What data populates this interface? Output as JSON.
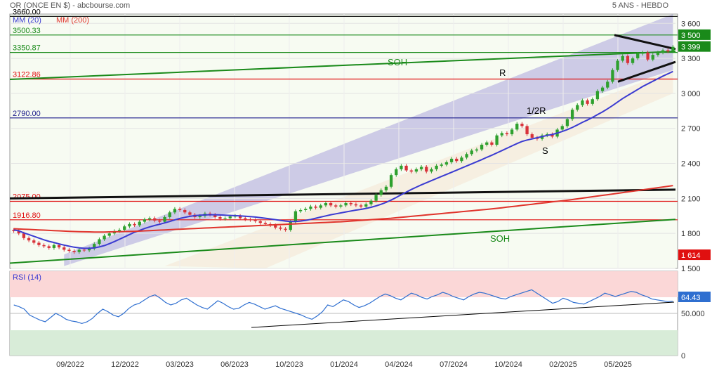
{
  "header": {
    "title": "OR (ONCE EN $) - abcbourse.com",
    "right": "5 ANS - HEBDO"
  },
  "legend": {
    "ma_short": "MM (20)",
    "ma_long": "MM (200)",
    "ma_short_color": "#3b3bd1",
    "ma_long_color": "#e0342c"
  },
  "levels": [
    {
      "label": "3660.00",
      "value": 3660,
      "color": "#000000"
    },
    {
      "label": "3500.33",
      "value": 3500.33,
      "color": "#1a8a1a"
    },
    {
      "label": "3350.87",
      "value": 3350.87,
      "color": "#1a8a1a"
    },
    {
      "label": "3122.86",
      "value": 3122.86,
      "color": "#e01010"
    },
    {
      "label": "2790.00",
      "value": 2790,
      "color": "#1a1a8a"
    },
    {
      "label": "2075.00",
      "value": 2075,
      "color": "#e01010"
    },
    {
      "label": "1916.80",
      "value": 1916.8,
      "color": "#e01010"
    }
  ],
  "annotations": {
    "soh_top": "SOH",
    "soh_bottom": "SOH",
    "r": "R",
    "half_r": "1/2R",
    "s": "S"
  },
  "price_badges": [
    {
      "label": "3 500",
      "value": 3500,
      "color": "#1a8a1a"
    },
    {
      "label": "3 399",
      "value": 3399,
      "color": "#1a8a1a"
    },
    {
      "label": "1 614",
      "value": 1614,
      "color": "#e01010"
    }
  ],
  "rsi": {
    "title": "RSI (14)",
    "value_label": "64.43",
    "value": 64.43,
    "line_color": "#2f6fd0",
    "ticks": [
      {
        "label": "50.000",
        "value": 50
      },
      {
        "label": "0",
        "value": 0
      }
    ],
    "overbought": 70,
    "oversold": 30,
    "series": [
      60,
      58,
      55,
      48,
      45,
      42,
      40,
      45,
      50,
      47,
      43,
      41,
      40,
      38,
      40,
      44,
      50,
      55,
      52,
      48,
      46,
      50,
      56,
      60,
      62,
      66,
      70,
      72,
      68,
      63,
      60,
      62,
      66,
      68,
      64,
      60,
      57,
      55,
      60,
      65,
      62,
      58,
      55,
      56,
      60,
      63,
      61,
      58,
      55,
      57,
      59,
      56,
      54,
      52,
      50,
      48,
      45,
      43,
      47,
      52,
      60,
      58,
      62,
      66,
      64,
      60,
      57,
      59,
      62,
      66,
      70,
      73,
      71,
      68,
      66,
      70,
      74,
      72,
      69,
      67,
      70,
      72,
      75,
      73,
      70,
      68,
      66,
      70,
      73,
      75,
      74,
      72,
      70,
      68,
      67,
      70,
      72,
      74,
      76,
      78,
      74,
      70,
      66,
      62,
      64,
      68,
      66,
      63,
      62,
      61,
      64,
      67,
      70,
      74,
      72,
      70,
      72,
      74,
      76,
      75,
      72,
      70,
      67,
      66,
      65,
      64,
      64.43
    ]
  },
  "chart_data": {
    "type": "candlestick",
    "title": "OR (ONCE EN $)",
    "period": "5 ANS - HEBDO",
    "ylim": [
      1500,
      3680
    ],
    "y_ticks": [
      1500,
      1800,
      2100,
      2400,
      2700,
      3000,
      3300,
      3600
    ],
    "y_tick_labels": [
      "1 500",
      "1 800",
      "2 100",
      "2 400",
      "2 700",
      "3 000",
      "3 300",
      "3 600"
    ],
    "x_tick_labels": [
      "09/2022",
      "12/2022",
      "03/2023",
      "06/2023",
      "10/2023",
      "01/2024",
      "04/2024",
      "07/2024",
      "10/2024",
      "02/2025",
      "05/2025"
    ],
    "close": [
      1820,
      1800,
      1760,
      1740,
      1720,
      1700,
      1690,
      1675,
      1700,
      1680,
      1660,
      1650,
      1640,
      1660,
      1655,
      1670,
      1710,
      1750,
      1780,
      1800,
      1820,
      1830,
      1860,
      1880,
      1870,
      1900,
      1920,
      1930,
      1910,
      1900,
      1940,
      1980,
      2010,
      2000,
      1980,
      1960,
      1940,
      1950,
      1970,
      1960,
      1940,
      1925,
      1930,
      1945,
      1950,
      1930,
      1920,
      1915,
      1905,
      1890,
      1880,
      1870,
      1850,
      1840,
      1830,
      1900,
      1990,
      2000,
      2010,
      2030,
      2020,
      2040,
      2060,
      2040,
      2030,
      2040,
      2060,
      2050,
      2040,
      2030,
      2050,
      2080,
      2130,
      2170,
      2200,
      2300,
      2350,
      2380,
      2340,
      2330,
      2350,
      2370,
      2330,
      2350,
      2380,
      2390,
      2410,
      2440,
      2420,
      2450,
      2480,
      2510,
      2520,
      2560,
      2580,
      2560,
      2640,
      2660,
      2650,
      2690,
      2740,
      2720,
      2650,
      2620,
      2610,
      2640,
      2650,
      2630,
      2690,
      2720,
      2780,
      2860,
      2900,
      2940,
      2910,
      2950,
      3020,
      3050,
      3100,
      3200,
      3280,
      3320,
      3260,
      3300,
      3340,
      3350,
      3290,
      3330,
      3350,
      3370,
      3360,
      3399
    ],
    "ma20_label": "MM (20)",
    "ma200_label": "MM (200)",
    "ma20": [
      1830,
      1822,
      1805,
      1790,
      1775,
      1760,
      1745,
      1732,
      1722,
      1710,
      1700,
      1690,
      1682,
      1676,
      1672,
      1672,
      1676,
      1684,
      1696,
      1712,
      1730,
      1750,
      1770,
      1790,
      1810,
      1826,
      1842,
      1856,
      1868,
      1878,
      1890,
      1902,
      1916,
      1928,
      1938,
      1946,
      1952,
      1956,
      1958,
      1960,
      1960,
      1958,
      1956,
      1954,
      1952,
      1950,
      1947,
      1944,
      1940,
      1935,
      1930,
      1924,
      1918,
      1912,
      1906,
      1902,
      1902,
      1906,
      1912,
      1920,
      1930,
      1940,
      1950,
      1960,
      1968,
      1976,
      1984,
      1992,
      2000,
      2006,
      2014,
      2024,
      2036,
      2050,
      2066,
      2086,
      2108,
      2132,
      2154,
      2176,
      2196,
      2216,
      2234,
      2252,
      2270,
      2288,
      2306,
      2324,
      2342,
      2360,
      2378,
      2396,
      2414,
      2432,
      2452,
      2470,
      2490,
      2510,
      2530,
      2550,
      2570,
      2588,
      2600,
      2610,
      2620,
      2630,
      2640,
      2648,
      2660,
      2674,
      2690,
      2708,
      2730,
      2752,
      2772,
      2794,
      2818,
      2842,
      2868,
      2896,
      2926,
      2956,
      2982,
      3008,
      3034,
      3060,
      3082,
      3104,
      3126,
      3148,
      3168,
      3188
    ],
    "ma200": [
      1840,
      1838,
      1836,
      1834,
      1832,
      1830,
      1828,
      1826,
      1824,
      1822,
      1820,
      1818,
      1816,
      1815,
      1814,
      1813,
      1812,
      1812,
      1812,
      1813,
      1814,
      1815,
      1816,
      1817,
      1818,
      1820,
      1822,
      1824,
      1826,
      1828,
      1830,
      1832,
      1834,
      1836,
      1838,
      1840,
      1842,
      1844,
      1846,
      1848,
      1850,
      1852,
      1854,
      1856,
      1858,
      1860,
      1862,
      1864,
      1866,
      1868,
      1870,
      1872,
      1874,
      1876,
      1878,
      1880,
      1882,
      1884,
      1886,
      1888,
      1890,
      1892,
      1894,
      1896,
      1898,
      1900,
      1903,
      1906,
      1909,
      1912,
      1915,
      1918,
      1921,
      1924,
      1927,
      1930,
      1934,
      1938,
      1942,
      1946,
      1950,
      1954,
      1958,
      1962,
      1966,
      1970,
      1974,
      1978,
      1982,
      1986,
      1990,
      1994,
      1998,
      2002,
      2006,
      2010,
      2015,
      2020,
      2025,
      2030,
      2035,
      2040,
      2045,
      2050,
      2055,
      2060,
      2065,
      2070,
      2075,
      2080,
      2085,
      2090,
      2096,
      2102,
      2108,
      2114,
      2120,
      2126,
      2132,
      2138,
      2144,
      2150,
      2156,
      2162,
      2168,
      2174,
      2180,
      2186,
      2192,
      2198,
      2204,
      2210
    ]
  }
}
